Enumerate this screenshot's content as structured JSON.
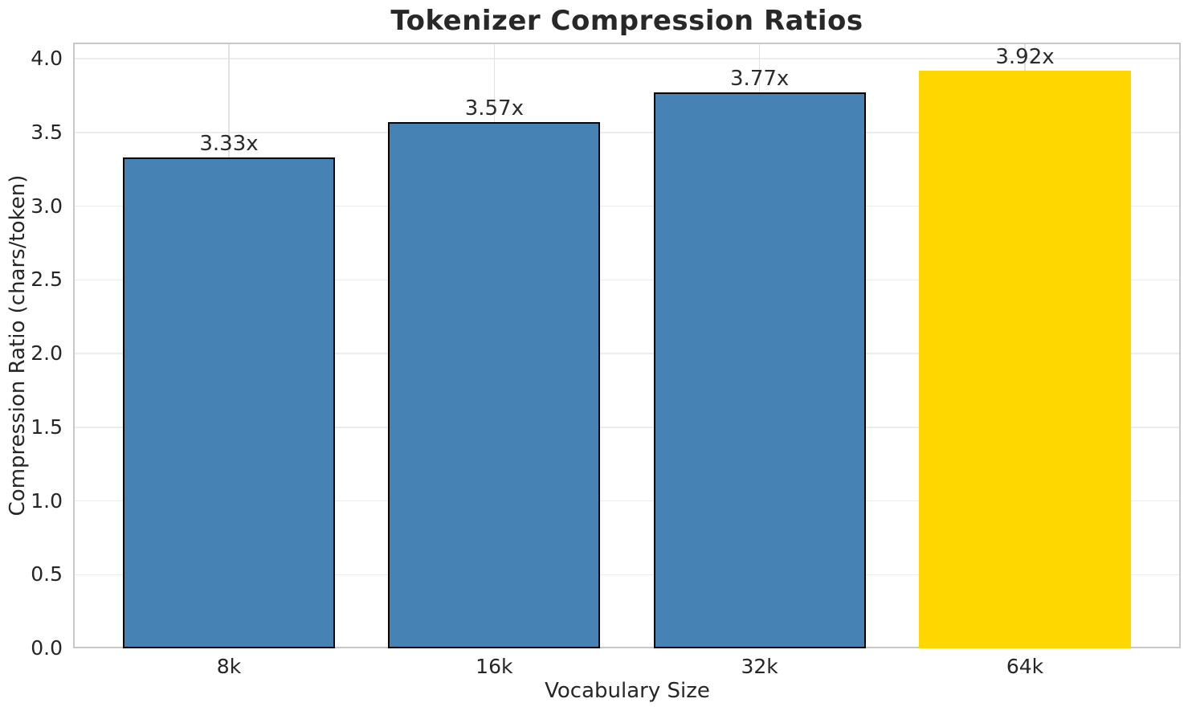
{
  "chart_data": {
    "type": "bar",
    "title": "Tokenizer Compression Ratios",
    "xlabel": "Vocabulary Size",
    "ylabel": "Compression Ratio (chars/token)",
    "categories": [
      "8k",
      "16k",
      "32k",
      "64k"
    ],
    "values": [
      3.33,
      3.57,
      3.77,
      3.92
    ],
    "bar_labels": [
      "3.33x",
      "3.57x",
      "3.77x",
      "3.92x"
    ],
    "bar_colors": [
      "#4682B4",
      "#4682B4",
      "#4682B4",
      "#FFD700"
    ],
    "bar_edge_colors": [
      "#000000",
      "#000000",
      "#000000",
      "none"
    ],
    "highlighted_category": "64k",
    "ylim": [
      0,
      4.11
    ],
    "ytick_values": [
      0.0,
      0.5,
      1.0,
      1.5,
      2.0,
      2.5,
      3.0,
      3.5,
      4.0
    ],
    "ytick_labels": [
      "0.0",
      "0.5",
      "1.0",
      "1.5",
      "2.0",
      "2.5",
      "3.0",
      "3.5",
      "4.0"
    ],
    "grid": "both",
    "legend_position": "none",
    "colors": {
      "bar_fill": "#4682B4",
      "highlight_fill": "#FFD700",
      "bar_edge": "#000000",
      "text": "#262626",
      "grid_h": "#ececec",
      "grid_v": "#e2e2e2",
      "spine": "#c8c8c8",
      "background": "#ffffff"
    }
  }
}
